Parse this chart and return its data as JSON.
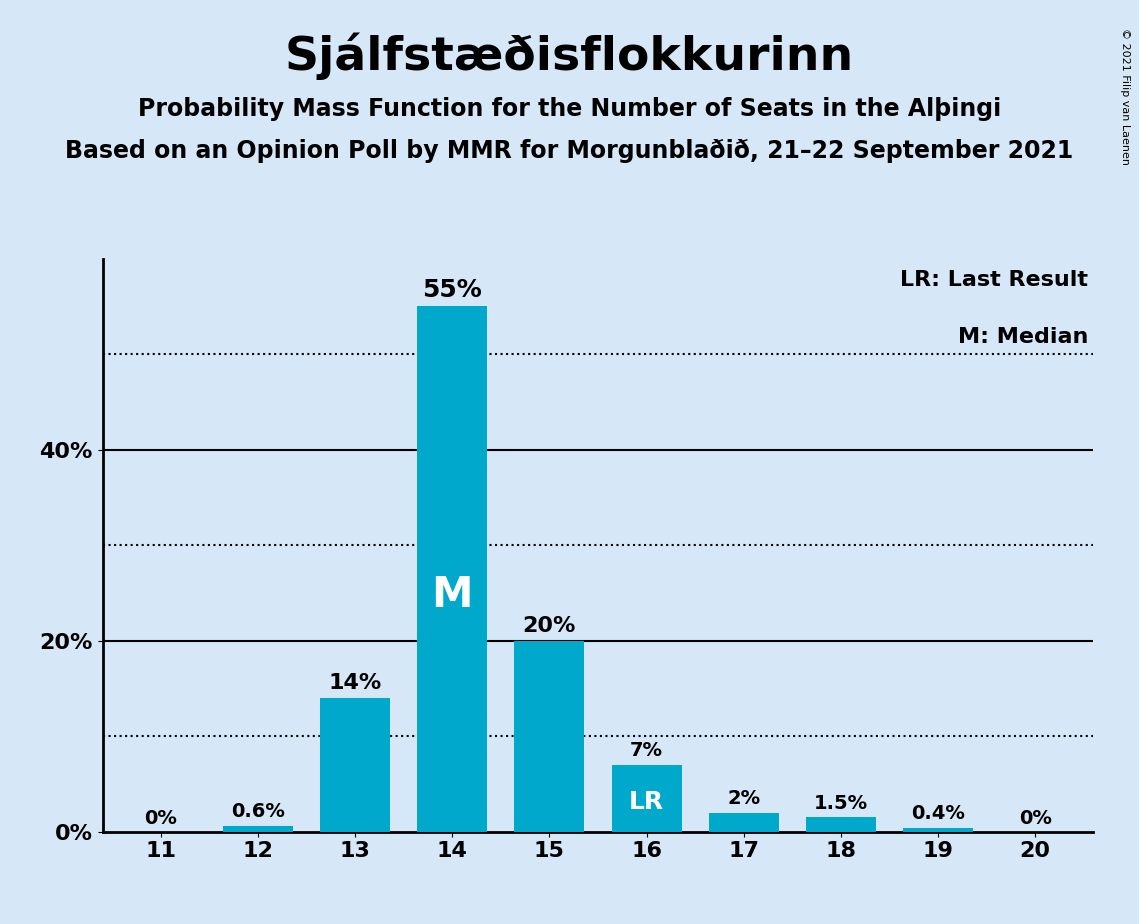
{
  "title": "Sjálfstæðisflokkurinn",
  "subtitle1": "Probability Mass Function for the Number of Seats in the Alþingi",
  "subtitle2": "Based on an Opinion Poll by MMR for Morgunblaðið, 21–22 September 2021",
  "copyright": "© 2021 Filip van Laenen",
  "categories": [
    11,
    12,
    13,
    14,
    15,
    16,
    17,
    18,
    19,
    20
  ],
  "values": [
    0.0,
    0.6,
    14.0,
    55.0,
    20.0,
    7.0,
    2.0,
    1.5,
    0.4,
    0.0
  ],
  "labels": [
    "0%",
    "0.6%",
    "14%",
    "55%",
    "20%",
    "7%",
    "2%",
    "1.5%",
    "0.4%",
    "0%"
  ],
  "label_sizes": [
    14,
    14,
    16,
    18,
    16,
    14,
    14,
    14,
    14,
    14
  ],
  "bar_color": "#00a8cc",
  "background_color": "#d6e8f7",
  "median_bar": 14,
  "lr_bar": 16,
  "legend_lr": "LR: Last Result",
  "legend_m": "M: Median",
  "yticks": [
    0,
    20,
    40
  ],
  "ytick_labels": [
    "0%",
    "20%",
    "40%"
  ],
  "dotted_lines": [
    10,
    30,
    50
  ],
  "ylim": [
    0,
    60
  ],
  "title_fontsize": 34,
  "subtitle_fontsize": 17,
  "tick_fontsize": 16,
  "legend_fontsize": 16,
  "bar_width": 0.72
}
